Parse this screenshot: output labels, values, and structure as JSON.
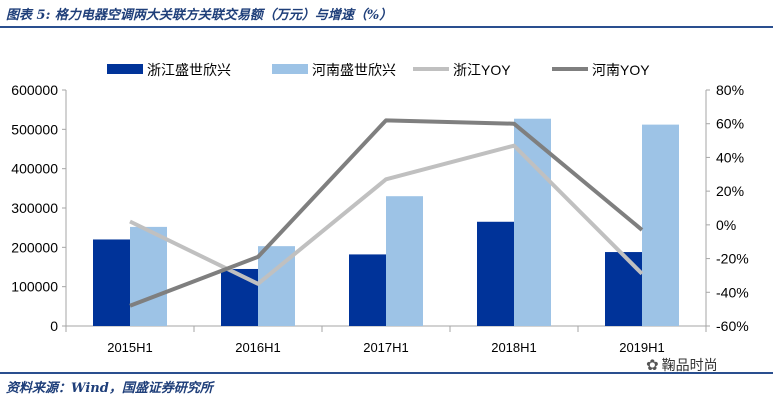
{
  "title": "图表 5: 格力电器空调两大关联方关联交易额（万元）与增速（%）",
  "source": "资料来源：Wind，国盛证券研究所",
  "watermark": "鞠品时尚",
  "colors": {
    "zhejiang_bar": "#003399",
    "henan_bar": "#9dc3e6",
    "zhejiang_line": "#c0c0c0",
    "henan_line": "#7f7f7f",
    "rule": "#2a4f8f"
  },
  "chart_data": {
    "type": "bar",
    "categories": [
      "2015H1",
      "2016H1",
      "2017H1",
      "2018H1",
      "2019H1"
    ],
    "ylim_left": [
      0,
      600000
    ],
    "yticks_left": [
      0,
      100000,
      200000,
      300000,
      400000,
      500000,
      600000
    ],
    "ylim_right": [
      -60,
      80
    ],
    "yticks_right": [
      "-60%",
      "-40%",
      "-20%",
      "0%",
      "20%",
      "40%",
      "60%",
      "80%"
    ],
    "legend_position": "top",
    "grid": false,
    "series": [
      {
        "name": "浙江盛世欣兴",
        "type": "bar",
        "axis": "left",
        "values": [
          220000,
          145000,
          182000,
          265000,
          188000
        ]
      },
      {
        "name": "河南盛世欣兴",
        "type": "bar",
        "axis": "left",
        "values": [
          252000,
          203000,
          330000,
          527000,
          512000
        ]
      },
      {
        "name": "浙江YOY",
        "type": "line",
        "axis": "right",
        "unit": "%",
        "values": [
          2,
          -35,
          27,
          47,
          -29
        ]
      },
      {
        "name": "河南YOY",
        "type": "line",
        "axis": "right",
        "unit": "%",
        "values": [
          -48,
          -19,
          62,
          60,
          -3
        ]
      }
    ]
  }
}
